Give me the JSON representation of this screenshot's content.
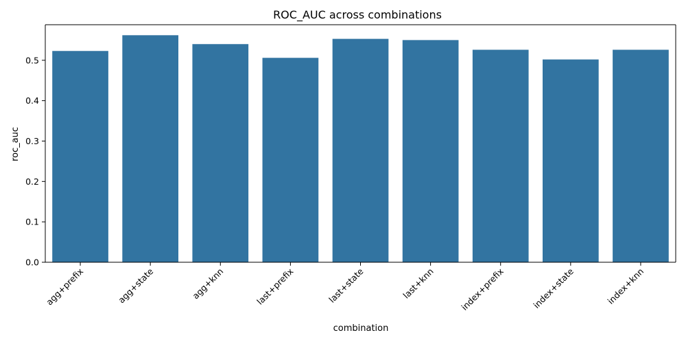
{
  "chart_data": {
    "type": "bar",
    "title": "ROC_AUC across combinations",
    "xlabel": "combination",
    "ylabel": "roc_auc",
    "categories": [
      "agg+prefix",
      "agg+state",
      "agg+knn",
      "last+prefix",
      "last+state",
      "last+knn",
      "index+prefix",
      "index+state",
      "index+knn"
    ],
    "values": [
      0.523,
      0.562,
      0.54,
      0.506,
      0.553,
      0.55,
      0.526,
      0.502,
      0.526
    ],
    "ylim": [
      0,
      0.588
    ],
    "yticks": [
      0.0,
      0.1,
      0.2,
      0.3,
      0.4,
      0.5
    ],
    "ytick_labels": [
      "0.0",
      "0.1",
      "0.2",
      "0.3",
      "0.4",
      "0.5"
    ],
    "bar_color": "#3274a1",
    "grid": false,
    "legend": "none",
    "xtick_rotation": 45
  }
}
